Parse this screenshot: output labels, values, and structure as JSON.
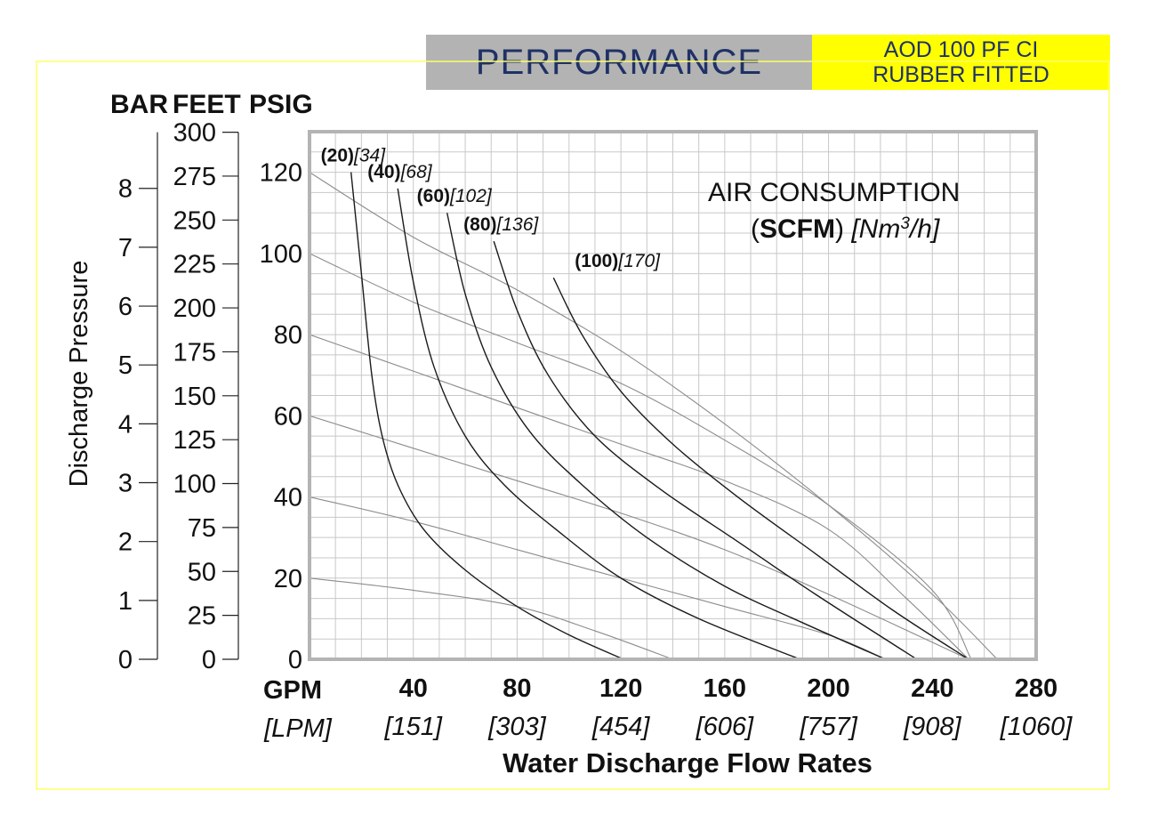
{
  "header": {
    "title": "PERFORMANCE",
    "model_line1": "AOD 100 PF CI",
    "model_line2": "RUBBER FITTED"
  },
  "colors": {
    "frame_border": "#ffff66",
    "title_bg": "#b3b3b3",
    "title_text": "#1f3166",
    "model_bg": "#ffff00",
    "grid": "#c8c8c8",
    "plot_border": "#b4b4b4",
    "air_curve": "#1a1a1a",
    "head_curve": "#8c8c8c"
  },
  "chart_data": {
    "type": "line",
    "title": "",
    "xlabel": "Water Discharge Flow Rates",
    "xlim": [
      0,
      280
    ],
    "ylim": [
      0,
      130
    ],
    "x_unit_label": "GPM",
    "x_unit_label_alt": "[LPM]",
    "x_ticks": [
      {
        "value": 40,
        "label": "40",
        "alt": "[151]"
      },
      {
        "value": 80,
        "label": "80",
        "alt": "[303]"
      },
      {
        "value": 120,
        "label": "120",
        "alt": "[454]"
      },
      {
        "value": 160,
        "label": "160",
        "alt": "[606]"
      },
      {
        "value": 200,
        "label": "200",
        "alt": "[757]"
      },
      {
        "value": 240,
        "label": "240",
        "alt": "[908]"
      },
      {
        "value": 280,
        "label": "280",
        "alt": "[1060]"
      }
    ],
    "y_axis_label": "Discharge Pressure",
    "psig_header": "PSIG",
    "psig_ticks": [
      0,
      20,
      40,
      60,
      80,
      100,
      120
    ],
    "feet_header": "FEET",
    "feet_ticks": [
      0,
      25,
      50,
      75,
      100,
      125,
      150,
      175,
      200,
      225,
      250,
      275,
      300
    ],
    "bar_header": "BAR",
    "bar_ticks": [
      0,
      1,
      2,
      3,
      4,
      5,
      6,
      7,
      8
    ],
    "air_consumption_label": {
      "line1": "AIR CONSUMPTION",
      "open": "(",
      "bold": "SCFM",
      "close": ")",
      "italic": "[Nm",
      "sup": "3",
      "italic_end": "/h]"
    },
    "air_series": [
      {
        "name_bold": "(20)",
        "name_italic": "[34]",
        "points": [
          [
            16,
            120
          ],
          [
            20,
            95
          ],
          [
            24,
            70
          ],
          [
            28,
            55
          ],
          [
            34,
            43
          ],
          [
            44,
            32
          ],
          [
            60,
            22
          ],
          [
            80,
            13
          ],
          [
            100,
            6
          ],
          [
            121,
            0
          ]
        ]
      },
      {
        "name_bold": "(40)",
        "name_italic": "[68]",
        "points": [
          [
            34,
            116
          ],
          [
            40,
            93
          ],
          [
            48,
            72
          ],
          [
            60,
            55
          ],
          [
            75,
            43
          ],
          [
            95,
            32
          ],
          [
            120,
            20
          ],
          [
            150,
            10
          ],
          [
            189,
            0
          ]
        ]
      },
      {
        "name_bold": "(60)",
        "name_italic": "[102]",
        "points": [
          [
            53,
            110
          ],
          [
            60,
            90
          ],
          [
            70,
            72
          ],
          [
            85,
            56
          ],
          [
            105,
            43
          ],
          [
            130,
            30
          ],
          [
            160,
            18
          ],
          [
            190,
            9
          ],
          [
            222,
            0
          ]
        ]
      },
      {
        "name_bold": "(80)",
        "name_italic": "[136]",
        "points": [
          [
            71,
            103
          ],
          [
            80,
            86
          ],
          [
            92,
            70
          ],
          [
            110,
            55
          ],
          [
            135,
            42
          ],
          [
            165,
            29
          ],
          [
            195,
            16
          ],
          [
            234,
            0
          ]
        ]
      },
      {
        "name_bold": "(100)",
        "name_italic": "[170]",
        "points": [
          [
            94,
            94
          ],
          [
            105,
            80
          ],
          [
            120,
            66
          ],
          [
            140,
            53
          ],
          [
            165,
            40
          ],
          [
            195,
            26
          ],
          [
            225,
            12
          ],
          [
            254,
            0
          ]
        ]
      }
    ],
    "head_series": [
      {
        "points": [
          [
            0,
            120
          ],
          [
            40,
            104
          ],
          [
            80,
            91
          ],
          [
            120,
            76
          ],
          [
            160,
            58
          ],
          [
            200,
            38
          ],
          [
            240,
            16
          ],
          [
            265,
            0
          ]
        ]
      },
      {
        "points": [
          [
            0,
            100
          ],
          [
            40,
            88
          ],
          [
            80,
            78
          ],
          [
            120,
            68
          ],
          [
            160,
            54
          ],
          [
            200,
            38
          ],
          [
            240,
            17
          ],
          [
            255,
            0
          ]
        ]
      },
      {
        "points": [
          [
            0,
            80
          ],
          [
            40,
            71
          ],
          [
            80,
            62
          ],
          [
            120,
            53
          ],
          [
            160,
            44
          ],
          [
            200,
            32
          ],
          [
            230,
            15
          ],
          [
            254,
            0
          ]
        ]
      },
      {
        "points": [
          [
            0,
            60
          ],
          [
            40,
            52
          ],
          [
            80,
            44
          ],
          [
            120,
            36
          ],
          [
            160,
            27
          ],
          [
            200,
            16
          ],
          [
            254,
            0
          ]
        ]
      },
      {
        "points": [
          [
            0,
            40
          ],
          [
            40,
            34
          ],
          [
            80,
            27
          ],
          [
            120,
            20
          ],
          [
            160,
            13
          ],
          [
            200,
            6
          ],
          [
            222,
            0
          ]
        ]
      },
      {
        "points": [
          [
            0,
            20
          ],
          [
            40,
            17
          ],
          [
            80,
            13
          ],
          [
            110,
            7
          ],
          [
            140,
            0
          ]
        ]
      }
    ]
  }
}
